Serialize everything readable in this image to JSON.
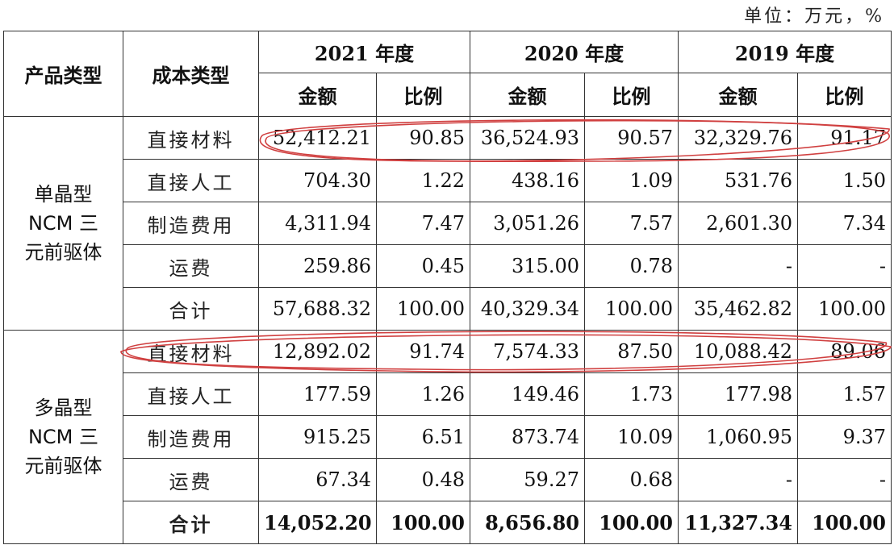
{
  "unit_note": "单位：万元，%",
  "header": {
    "product_type": "产品类型",
    "cost_type": "成本类型",
    "years": [
      "2021 年度",
      "2020 年度",
      "2019 年度"
    ],
    "amount": "金额",
    "ratio": "比例"
  },
  "groups": [
    {
      "product_line1": "单晶型",
      "product_line2": "NCM 三",
      "product_line3": "元前驱体",
      "rows": [
        {
          "type": "直接材料",
          "v": [
            "52,412.21",
            "90.85",
            "36,524.93",
            "90.57",
            "32,329.76",
            "91.17"
          ]
        },
        {
          "type": "直接人工",
          "v": [
            "704.30",
            "1.22",
            "438.16",
            "1.09",
            "531.76",
            "1.50"
          ]
        },
        {
          "type": "制造费用",
          "v": [
            "4,311.94",
            "7.47",
            "3,051.26",
            "7.57",
            "2,601.30",
            "7.34"
          ]
        },
        {
          "type": "运费",
          "v": [
            "259.86",
            "0.45",
            "315.00",
            "0.78",
            "-",
            "-"
          ]
        },
        {
          "type": "合计",
          "v": [
            "57,688.32",
            "100.00",
            "40,329.34",
            "100.00",
            "35,462.82",
            "100.00"
          ]
        }
      ]
    },
    {
      "product_line1": "多晶型",
      "product_line2": "NCM 三",
      "product_line3": "元前驱体",
      "rows": [
        {
          "type": "直接材料",
          "v": [
            "12,892.02",
            "91.74",
            "7,574.33",
            "87.50",
            "10,088.42",
            "89.06"
          ]
        },
        {
          "type": "直接人工",
          "v": [
            "177.59",
            "1.26",
            "149.46",
            "1.73",
            "177.98",
            "1.57"
          ]
        },
        {
          "type": "制造费用",
          "v": [
            "915.25",
            "6.51",
            "873.74",
            "10.09",
            "1,060.95",
            "9.37"
          ]
        },
        {
          "type": "运费",
          "v": [
            "67.34",
            "0.48",
            "59.27",
            "0.68",
            "-",
            "-"
          ]
        },
        {
          "type": "合计",
          "v": [
            "14,052.20",
            "100.00",
            "8,656.80",
            "100.00",
            "11,327.34",
            "100.00"
          ]
        }
      ]
    }
  ],
  "annotation_color": "#d04040"
}
